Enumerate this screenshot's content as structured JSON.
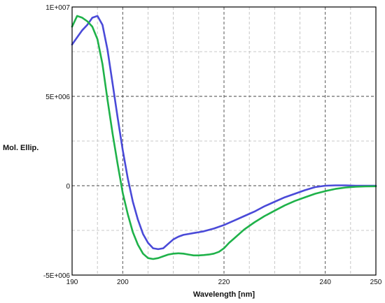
{
  "chart_data": {
    "type": "line",
    "title": "",
    "xlabel": "Wavelength [nm]",
    "ylabel": "Mol. Ellip.",
    "xlim": [
      190,
      250
    ],
    "ylim": [
      -5000000,
      10000000
    ],
    "x_ticks": [
      190,
      200,
      220,
      240,
      250
    ],
    "x_tick_labels": [
      "190",
      "200",
      "220",
      "240",
      "250"
    ],
    "x_grid": [
      190,
      195,
      200,
      205,
      210,
      215,
      220,
      225,
      230,
      235,
      240,
      245,
      250
    ],
    "y_ticks": [
      10000000,
      5000000,
      0,
      -5000000
    ],
    "y_tick_labels": [
      "1E+007",
      "5E+006",
      "0",
      "-5E+006"
    ],
    "y_grid": [
      10000000,
      7500000,
      5000000,
      2500000,
      0,
      -2500000,
      -5000000
    ],
    "grid": true,
    "legend": "none",
    "series": [
      {
        "color": "#4a4ad8",
        "x": [
          190,
          191,
          192,
          193,
          194,
          195,
          196,
          197,
          198,
          199,
          200,
          201,
          202,
          203,
          204,
          205,
          206,
          207,
          208,
          209,
          210,
          211,
          212,
          213,
          214,
          215,
          216,
          218,
          220,
          222,
          224,
          226,
          228,
          230,
          232,
          234,
          236,
          238,
          240,
          242,
          244,
          246,
          248,
          250
        ],
        "y": [
          7900000,
          8300000,
          8700000,
          9000000,
          9400000,
          9500000,
          9000000,
          7600000,
          5700000,
          3800000,
          2000000,
          400000,
          -900000,
          -1900000,
          -2700000,
          -3200000,
          -3500000,
          -3550000,
          -3500000,
          -3250000,
          -3000000,
          -2850000,
          -2750000,
          -2700000,
          -2650000,
          -2600000,
          -2550000,
          -2400000,
          -2200000,
          -1950000,
          -1700000,
          -1450000,
          -1150000,
          -900000,
          -650000,
          -450000,
          -250000,
          -80000,
          0,
          20000,
          20000,
          0,
          0,
          0
        ]
      },
      {
        "color": "#1fb24a",
        "x": [
          190,
          191,
          192,
          193,
          194,
          195,
          196,
          197,
          198,
          199,
          200,
          201,
          202,
          203,
          204,
          205,
          206,
          207,
          208,
          209,
          210,
          211,
          212,
          213,
          214,
          215,
          216,
          217,
          218,
          219,
          220,
          221,
          222,
          224,
          226,
          228,
          230,
          232,
          234,
          236,
          238,
          240,
          242,
          244,
          246,
          248,
          250
        ],
        "y": [
          8900000,
          9500000,
          9400000,
          9200000,
          8900000,
          8200000,
          6800000,
          4800000,
          2900000,
          1200000,
          -400000,
          -1600000,
          -2600000,
          -3300000,
          -3800000,
          -4050000,
          -4100000,
          -4050000,
          -3950000,
          -3850000,
          -3800000,
          -3780000,
          -3800000,
          -3850000,
          -3900000,
          -3900000,
          -3880000,
          -3850000,
          -3800000,
          -3700000,
          -3500000,
          -3200000,
          -2950000,
          -2450000,
          -2050000,
          -1700000,
          -1400000,
          -1100000,
          -850000,
          -650000,
          -450000,
          -300000,
          -180000,
          -100000,
          -60000,
          -40000,
          -30000
        ]
      }
    ]
  }
}
